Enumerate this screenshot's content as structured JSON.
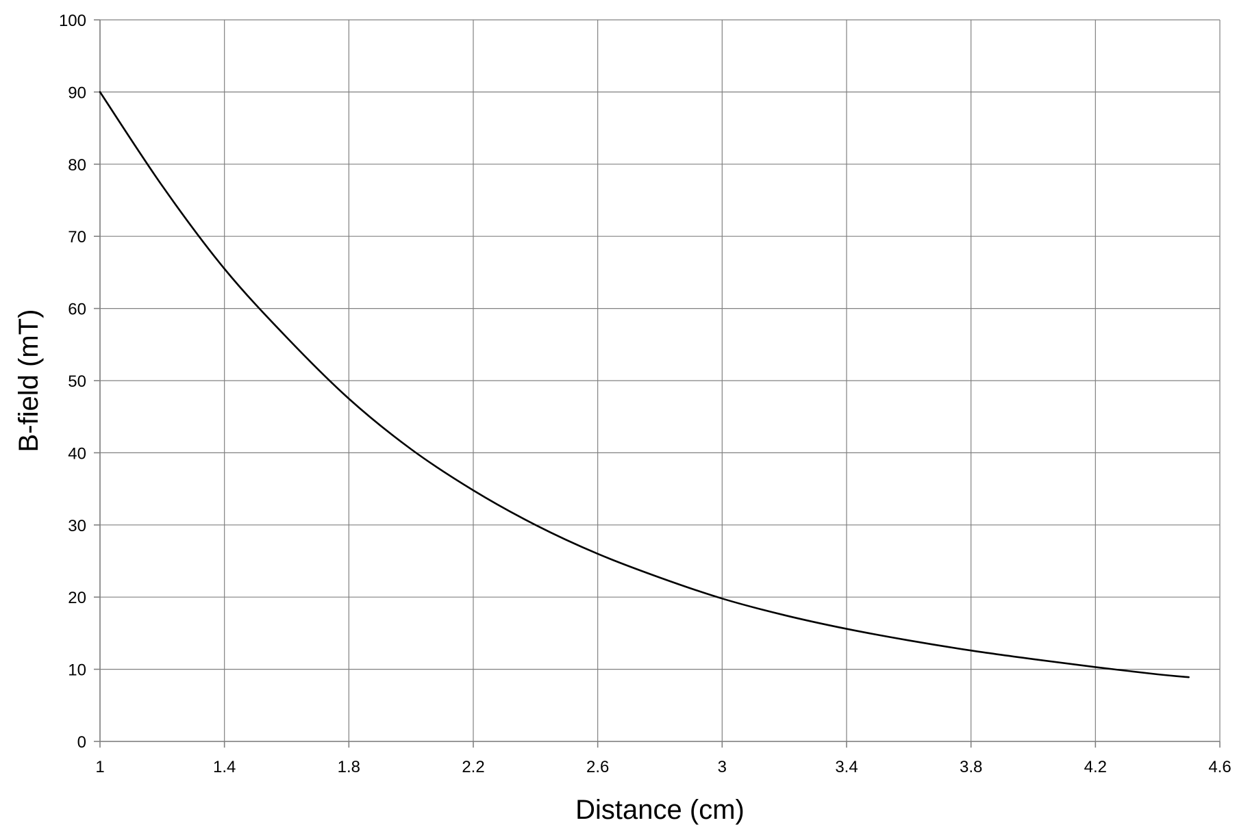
{
  "chart_data": {
    "type": "line",
    "title": "",
    "xlabel": "Distance (cm)",
    "ylabel": "B-field (mT)",
    "xlim": [
      1,
      4.6
    ],
    "ylim": [
      0,
      100
    ],
    "x_ticks": [
      "1",
      "1.4",
      "1.8",
      "2.2",
      "2.6",
      "3",
      "3.4",
      "3.8",
      "4.2",
      "4.6"
    ],
    "y_ticks": [
      "0",
      "10",
      "20",
      "30",
      "40",
      "50",
      "60",
      "70",
      "80",
      "90",
      "100"
    ],
    "grid": true,
    "legend": "none",
    "series": [
      {
        "color": "#000000",
        "x": [
          1,
          1.2,
          1.4,
          1.6,
          1.8,
          2.0,
          2.2,
          2.4,
          2.6,
          2.8,
          3.0,
          3.2,
          3.4,
          3.6,
          3.8,
          4.0,
          4.2,
          4.4,
          4.5
        ],
        "y": [
          90,
          77,
          65.5,
          56,
          47.5,
          40.5,
          34.8,
          30.0,
          26.0,
          22.7,
          19.8,
          17.5,
          15.6,
          14.0,
          12.6,
          11.4,
          10.3,
          9.3,
          8.9
        ]
      }
    ]
  }
}
